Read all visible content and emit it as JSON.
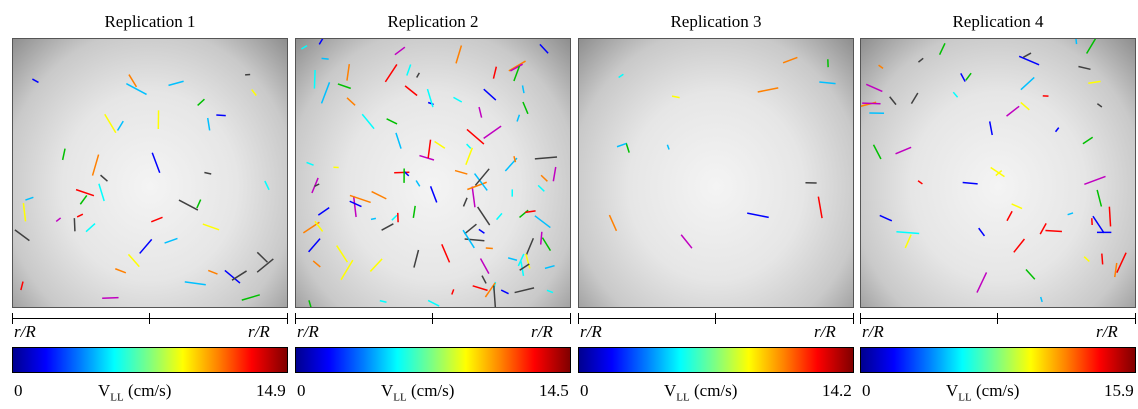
{
  "panels": [
    {
      "title": "Replication 1",
      "left_label": "r/R",
      "right_label": "r/R",
      "min": 0,
      "symbol": "V",
      "subscript": "LL",
      "unit": "(cm/s)",
      "max": 14.9
    },
    {
      "title": "Replication 2",
      "left_label": "r/R",
      "right_label": "r/R",
      "min": 0,
      "symbol": "V",
      "subscript": "LL",
      "unit": "(cm/s)",
      "max": 14.5
    },
    {
      "title": "Replication 3",
      "left_label": "r/R",
      "right_label": "r/R",
      "min": 0,
      "symbol": "V",
      "subscript": "LL",
      "unit": "(cm/s)",
      "max": 14.2
    },
    {
      "title": "Replication 4",
      "left_label": "r/R",
      "right_label": "r/R",
      "min": 0,
      "symbol": "V",
      "subscript": "LL",
      "unit": "(cm/s)",
      "max": 15.9
    }
  ]
}
